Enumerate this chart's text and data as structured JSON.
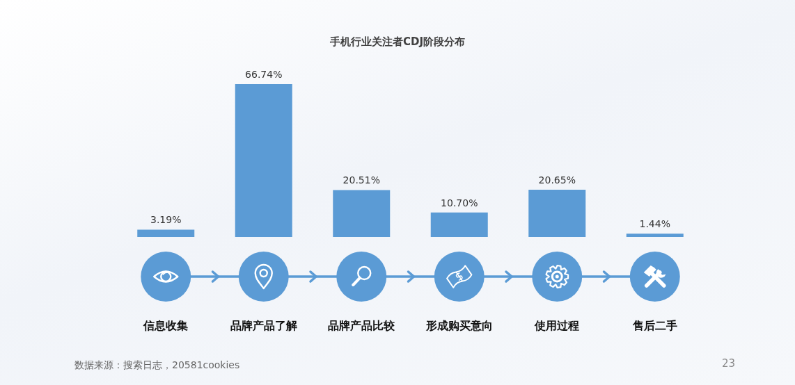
{
  "chart_data": {
    "type": "bar",
    "title": "手机行业关注者CDJ阶段分布",
    "categories": [
      "信息收集",
      "品牌产品了解",
      "品牌产品比较",
      "形成购买意向",
      "使用过程",
      "售后二手"
    ],
    "values": [
      3.19,
      66.74,
      20.51,
      10.7,
      20.65,
      1.44
    ],
    "value_labels": [
      "3.19%",
      "66.74%",
      "20.51%",
      "10.70%",
      "20.65%",
      "1.44%"
    ],
    "color": "#5b9bd5",
    "annotations": [
      "数据来源：搜索日志，20581cookies",
      "23"
    ]
  }
}
